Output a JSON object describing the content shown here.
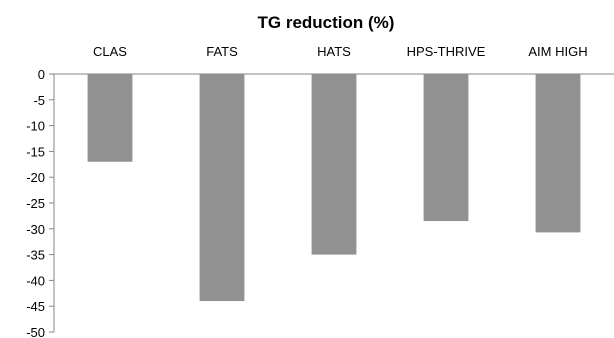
{
  "chart_data": {
    "type": "bar",
    "title": "TG reduction (%)",
    "categories": [
      "CLAS",
      "FATS",
      "HATS",
      "HPS-THRIVE",
      "AIM HIGH"
    ],
    "values": [
      -17,
      -44,
      -35,
      -28.5,
      -30.7
    ],
    "ylim": [
      -50,
      0
    ],
    "yticks": [
      0,
      -5,
      -10,
      -15,
      -20,
      -25,
      -30,
      -35,
      -40,
      -45,
      -50
    ],
    "xlabel": "",
    "ylabel": "",
    "category_axis_position": "top",
    "grid": false,
    "legend": "none",
    "bar_color": "#919191",
    "axis_color": "#868686"
  }
}
